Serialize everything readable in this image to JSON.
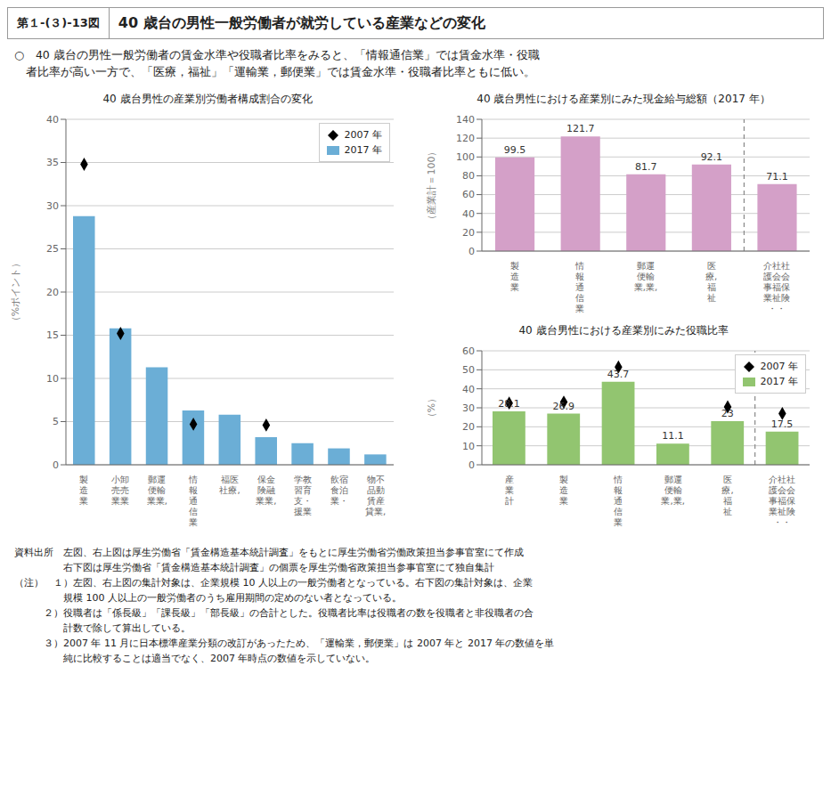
{
  "title": "40 歳台の男性一般労働者が就労している産業などの変化",
  "annotations": [
    "第１-(３)-13図"
  ],
  "subtitle": [
    "○　40 歳台の男性一般労働者の賃金水準や役職者比率をみると、「情報通信業」では賃金水準・役職",
    "　者比率が高い一方で、「医療，福祉」「運輸業，郵便業」では賃金水準・役職者比率ともに低い。"
  ],
  "notes": [
    "資料出所　左図、右上図は厚生労働省「賃金構造基本統計調査」をもとに厚生労働省労働政策担当参事官室にて作成",
    "　　　　　右下図は厚生労働省「賃金構造基本統計調査」の個票を厚生労働省政策担当参事官室にて独自集計",
    "（注）　１）左図、右上図の集計対象は、企業規模 10 人以上の一般労働者となっている。右下図の集計対象は、企業",
    "　　　　　規模 100 人以上の一般労働者のうち雇用期間の定めのない者となっている。",
    "　　　２）役職者は「係長級」「課長級」「部長級」の合計とした。役職者比率は役職者の数を役職者と非役職者の合",
    "　　　　　計数で除して算出している。",
    "　　　３）2007 年 11 月に日本標準産業分類の改訂があったため、「運輸業，郵便業」は 2007 年と 2017 年の数値を単",
    "　　　　　純に比較することは適当でなく、2007 年時点の数値を示していない。"
  ],
  "chart_data": [
    {
      "type": "bar",
      "title": "40 歳台男性の産業別労働者構成割合の変化",
      "ylabel": "（%ポイント）",
      "categories": [
        "製\n造\n業",
        "小卸\n売売\n業業",
        "郵運\n便輸\n業業,",
        "情\n報\n通\n信\n業",
        "福医\n社療,\n",
        "保金\n険融\n業業,",
        "学教\n習育\n支・\n援業",
        "飲宿\n食泊\n業・",
        "物不\n品動\n賃産\n貸業,"
      ],
      "series": [
        {
          "name": "2007 年",
          "type": "scatter",
          "marker": "diamond",
          "color": "black",
          "values": [
            34.8,
            15.2,
            null,
            4.7,
            null,
            4.6,
            null,
            null,
            null
          ]
        },
        {
          "name": "2017 年",
          "type": "bar",
          "color": "#6BAED6",
          "values": [
            28.8,
            15.8,
            11.3,
            6.3,
            5.8,
            3.2,
            2.5,
            1.9,
            1.2
          ]
        }
      ],
      "ylim": [
        0,
        40
      ],
      "yticks": [
        0,
        5,
        10,
        15,
        20,
        25,
        30,
        35,
        40
      ],
      "grid": true,
      "legend": "upper right"
    },
    {
      "type": "bar",
      "title": "40 歳台男性における産業別にみた現金給与総額（2017 年）",
      "ylabel": "（産業計＝100）",
      "categories": [
        "製\n造\n業",
        "情\n報\n通\n信\n業",
        "郵運\n便輸\n業,業,",
        "医\n療,\n福\n祉",
        "介社社\n護会会\n事福保\n業祉険\n・・"
      ],
      "values": [
        99.5,
        121.7,
        81.7,
        92.1,
        71.1
      ],
      "color": "#D4A0C8",
      "ylim": [
        0,
        140
      ],
      "yticks": [
        0,
        20,
        40,
        60,
        80,
        100,
        120,
        140
      ],
      "grid": true,
      "data_labels": true
    },
    {
      "type": "bar",
      "title": "40 歳台男性における産業別にみた役職比率",
      "ylabel": "（%）",
      "categories": [
        "産\n業\n計",
        "製\n造\n業",
        "情\n報\n通\n信\n業",
        "郵運\n便輸\n業,業,",
        "医\n療,\n福\n祉",
        "介社社\n護会会\n事福保\n業祉険\n・・"
      ],
      "series": [
        {
          "name": "2007 年",
          "type": "scatter",
          "marker": "diamond",
          "color": "black",
          "values": [
            32.5,
            33.0,
            51.5,
            null,
            30.5,
            27.0
          ]
        },
        {
          "name": "2017 年",
          "type": "bar",
          "color": "#92C570",
          "values": [
            28.1,
            26.9,
            43.7,
            11.1,
            23.0,
            17.5
          ],
          "data_labels": true
        }
      ],
      "ylim": [
        0,
        60
      ],
      "yticks": [
        0,
        10,
        20,
        30,
        40,
        50,
        60
      ],
      "grid": true,
      "legend": "upper right"
    }
  ]
}
